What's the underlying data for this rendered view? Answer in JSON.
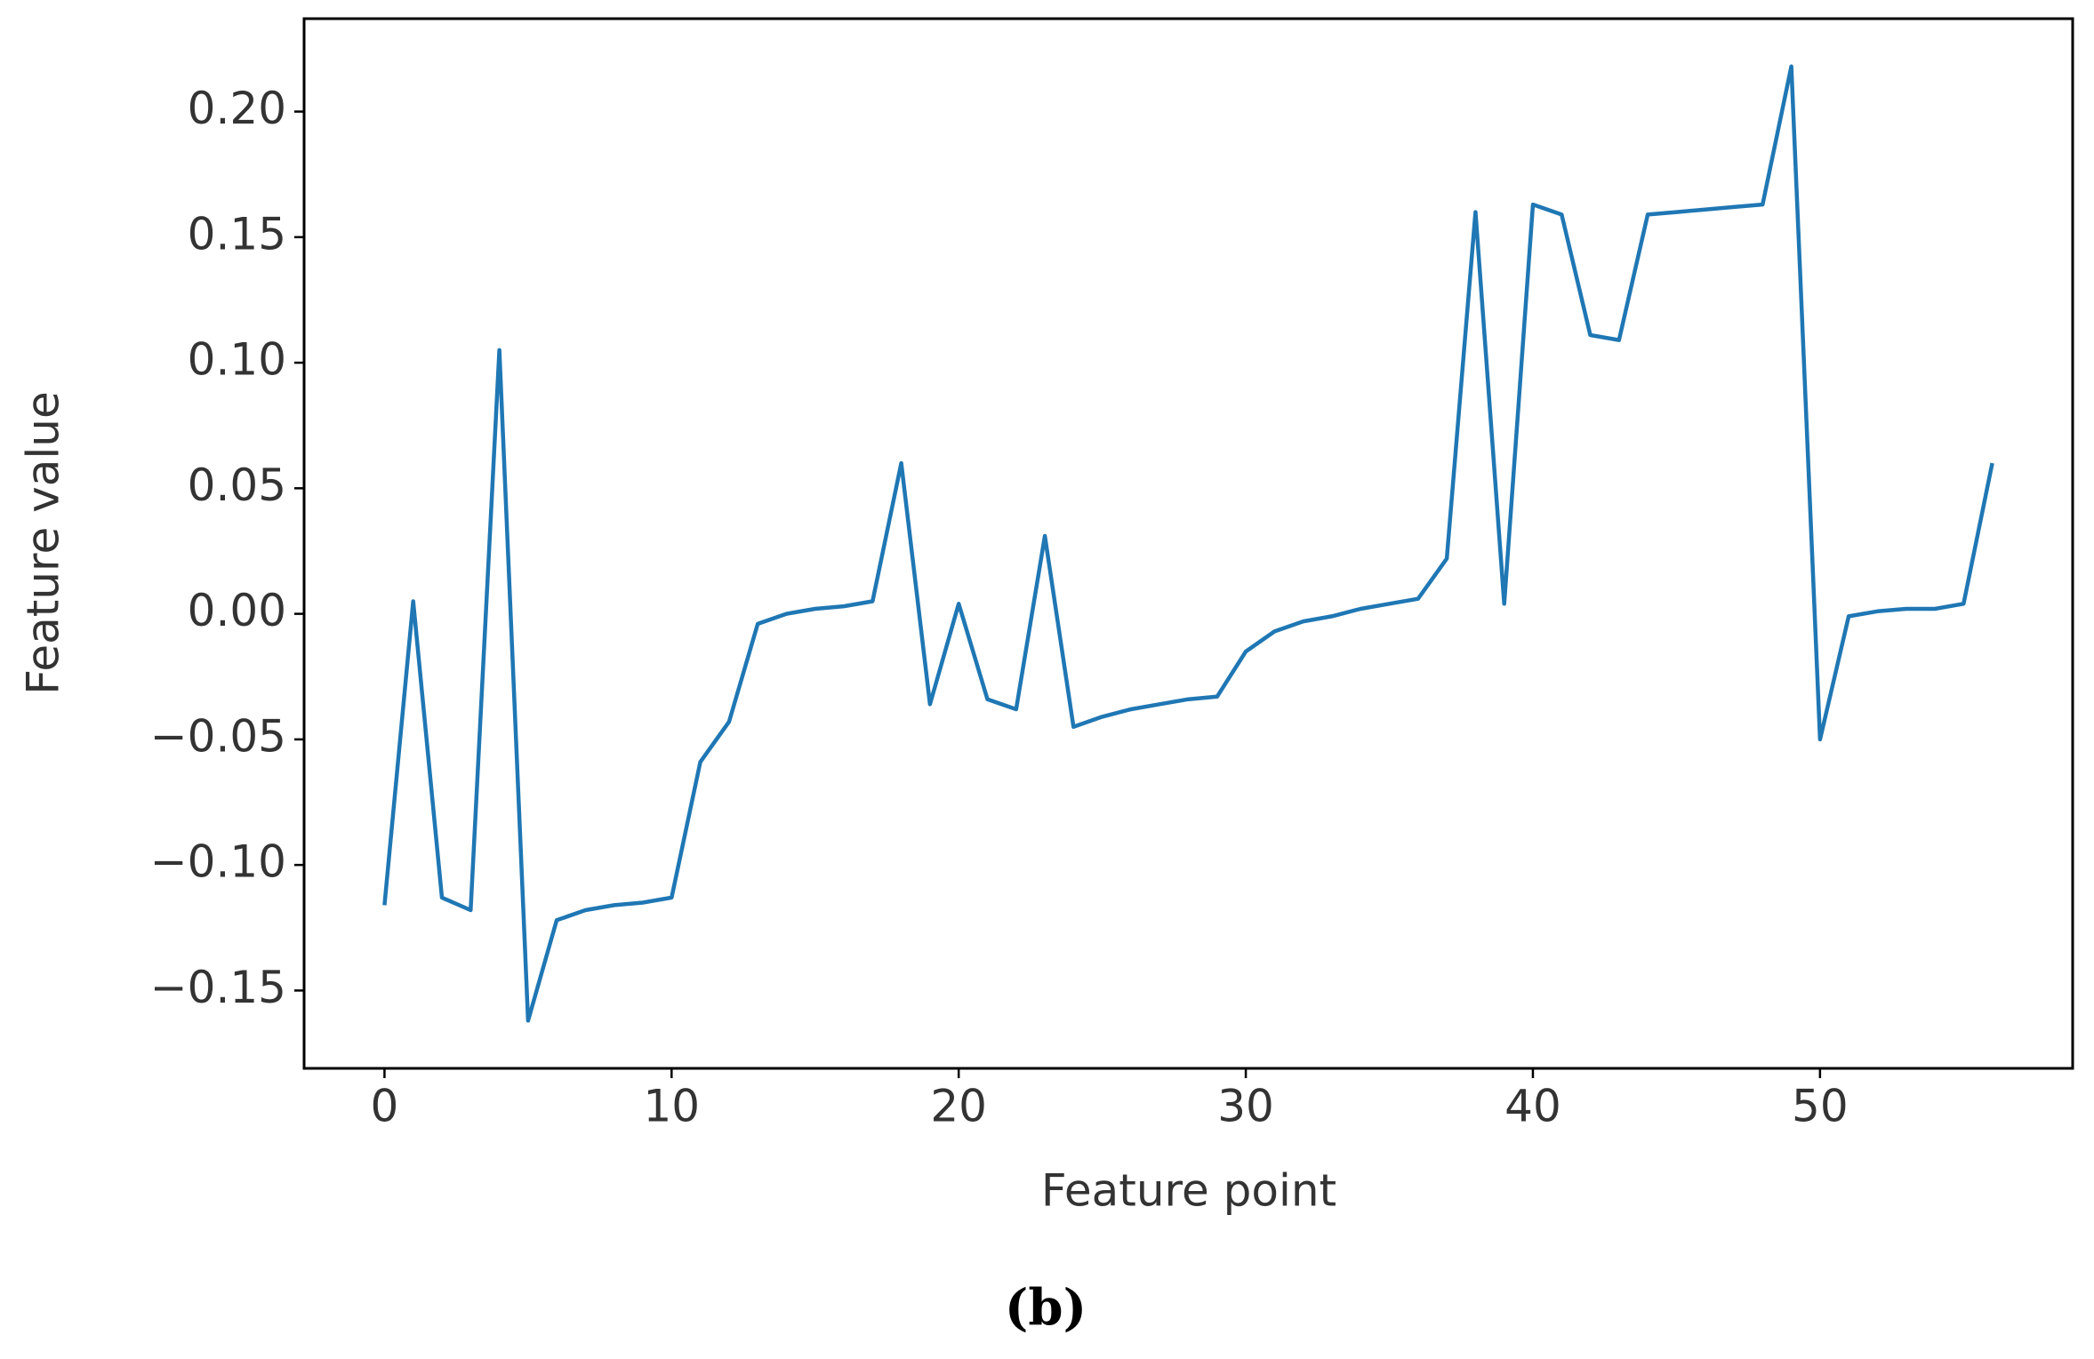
{
  "chart_data": {
    "type": "line",
    "x_label": "Feature point",
    "y_label": "Feature value",
    "caption": "(b)",
    "color": "#1f77b4",
    "x": [
      0,
      1,
      2,
      3,
      4,
      5,
      6,
      7,
      8,
      9,
      10,
      11,
      12,
      13,
      14,
      15,
      16,
      17,
      18,
      19,
      20,
      21,
      22,
      23,
      24,
      25,
      26,
      27,
      28,
      29,
      30,
      31,
      32,
      33,
      34,
      35,
      36,
      37,
      38,
      39,
      40,
      41,
      42,
      43,
      44,
      45,
      46,
      47,
      48,
      49,
      50,
      51,
      52,
      53,
      54,
      55,
      56
    ],
    "values": [
      -0.116,
      0.005,
      -0.113,
      -0.118,
      0.105,
      -0.162,
      -0.122,
      -0.118,
      -0.116,
      -0.115,
      -0.113,
      -0.059,
      -0.043,
      -0.004,
      0.0,
      0.002,
      0.003,
      0.005,
      0.06,
      -0.036,
      0.004,
      -0.034,
      -0.038,
      0.031,
      -0.045,
      -0.041,
      -0.038,
      -0.036,
      -0.034,
      -0.033,
      -0.015,
      -0.007,
      -0.003,
      -0.001,
      0.002,
      0.004,
      0.006,
      0.022,
      0.16,
      0.004,
      0.163,
      0.159,
      0.111,
      0.109,
      0.159,
      0.16,
      0.161,
      0.162,
      0.163,
      0.218,
      -0.05,
      -0.001,
      0.001,
      0.002,
      0.002,
      0.004,
      0.06
    ],
    "xlim": [
      -2.8,
      58.8
    ],
    "ylim": [
      -0.181,
      0.237
    ],
    "xticks": [
      0,
      10,
      20,
      30,
      40,
      50
    ],
    "yticks": [
      {
        "value": -0.15,
        "label": "−0.15"
      },
      {
        "value": -0.1,
        "label": "−0.10"
      },
      {
        "value": -0.05,
        "label": "−0.05"
      },
      {
        "value": 0,
        "label": "0.00"
      },
      {
        "value": 0.05,
        "label": "0.05"
      },
      {
        "value": 0.1,
        "label": "0.10"
      },
      {
        "value": 0.15,
        "label": "0.15"
      },
      {
        "value": 0.2,
        "label": "0.20"
      }
    ]
  }
}
